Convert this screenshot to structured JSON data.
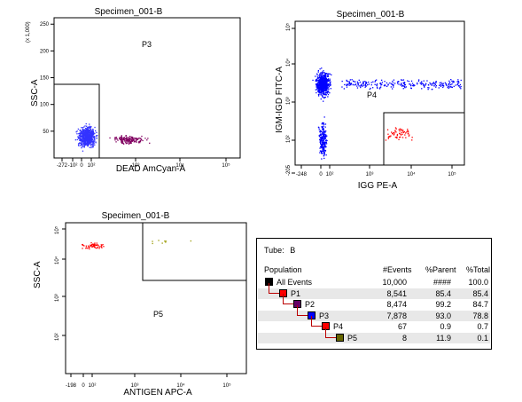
{
  "plots": [
    {
      "id": "plot1",
      "title": "Specimen_001-B",
      "xlabel": "DEAD AmCyan-A",
      "ylabel": "SSC-A",
      "y_multiplier_label": "(x 1,000)",
      "x_ticks": [
        "-272",
        "-10²",
        "0",
        "10²",
        "10³",
        "10⁴",
        "10⁵"
      ],
      "y_ticks": [
        "50",
        "100",
        "150",
        "200",
        "250"
      ],
      "gate_label": "P3"
    },
    {
      "id": "plot2",
      "title": "Specimen_001-B",
      "xlabel": "IGG PE-A",
      "ylabel": "IGM-IGD FITC-A",
      "x_ticks": [
        "-248",
        "0",
        "10²",
        "10³",
        "10⁴",
        "10⁵"
      ],
      "y_ticks": [
        "-205",
        "10²",
        "10³",
        "10⁴",
        "10⁵"
      ],
      "gate_label": "P4"
    },
    {
      "id": "plot3",
      "title": "Specimen_001-B",
      "xlabel": "ANTIGEN APC-A",
      "ylabel": "SSC-A",
      "x_ticks": [
        "-198",
        "0",
        "10²",
        "10³",
        "10⁴",
        "10⁵"
      ],
      "y_ticks": [
        "10²",
        "10³",
        "10⁴",
        "10⁵"
      ],
      "gate_label": "P5"
    }
  ],
  "colors": {
    "all": "#000000",
    "p1": "#ff0000",
    "p2": "#660066",
    "p3": "#0000ff",
    "p4": "#ff0000",
    "p5": "#666600"
  },
  "stats": {
    "tube_label": "Tube:",
    "tube_value": "B",
    "headers": {
      "population": "Population",
      "events": "#Events",
      "parent": "%Parent",
      "total": "%Total"
    },
    "rows": [
      {
        "name": "All Events",
        "events": "10,000",
        "parent": "####",
        "total": "100.0",
        "color": "#000000",
        "level": 0
      },
      {
        "name": "P1",
        "events": "8,541",
        "parent": "85.4",
        "total": "85.4",
        "color": "#ff0000",
        "level": 1
      },
      {
        "name": "P2",
        "events": "8,474",
        "parent": "99.2",
        "total": "84.7",
        "color": "#660066",
        "level": 2
      },
      {
        "name": "P3",
        "events": "7,878",
        "parent": "93.0",
        "total": "78.8",
        "color": "#0000ff",
        "level": 3
      },
      {
        "name": "P4",
        "events": "67",
        "parent": "0.9",
        "total": "0.7",
        "color": "#ff0000",
        "level": 4
      },
      {
        "name": "P5",
        "events": "8",
        "parent": "11.9",
        "total": "0.1",
        "color": "#666600",
        "level": 5
      }
    ]
  },
  "chart_data": [
    {
      "type": "scatter",
      "title": "Specimen_001-B",
      "xlabel": "DEAD AmCyan-A",
      "ylabel": "SSC-A (x 1,000)",
      "x_scale": "biexponential",
      "xlim": [
        -272,
        262144
      ],
      "ylim": [
        0,
        262
      ],
      "gates": [
        {
          "name": "P3",
          "x": [
            -272,
            150
          ],
          "y": [
            0,
            130
          ]
        }
      ],
      "series": [
        {
          "name": "P3",
          "color": "#3333ff",
          "clusters": [
            {
              "x": 10,
              "y": 40
            }
          ]
        },
        {
          "name": "P2",
          "color": "#800060",
          "clusters": [
            {
              "x": 600,
              "y": 35
            }
          ]
        }
      ]
    },
    {
      "type": "scatter",
      "title": "Specimen_001-B",
      "xlabel": "IGG PE-A",
      "ylabel": "IGM-IGD FITC-A",
      "x_scale": "biexponential",
      "y_scale": "biexponential",
      "xlim": [
        -248,
        262144
      ],
      "ylim": [
        -205,
        262144
      ],
      "gates": [
        {
          "name": "P4",
          "x": [
            400,
            262144
          ],
          "y": [
            -205,
            700
          ]
        }
      ],
      "series": [
        {
          "name": "P3",
          "color": "#0000ff",
          "clusters": [
            {
              "x": 30,
              "y": 3000
            },
            {
              "x": 30,
              "y": 100
            }
          ]
        },
        {
          "name": "P4",
          "color": "#ff0000",
          "clusters": [
            {
              "x": 5000,
              "y": 200
            }
          ]
        }
      ]
    },
    {
      "type": "scatter",
      "title": "Specimen_001-B",
      "xlabel": "ANTIGEN APC-A",
      "ylabel": "SSC-A",
      "x_scale": "biexponential",
      "y_scale": "log",
      "xlim": [
        -198,
        262144
      ],
      "ylim": [
        50,
        262144
      ],
      "gates": [
        {
          "name": "P5",
          "x": [
            600,
            262144
          ],
          "y": [
            16000,
            262144
          ]
        }
      ],
      "series": [
        {
          "name": "P4",
          "color": "#ff0000",
          "clusters": [
            {
              "x": 30,
              "y": 60000
            }
          ]
        },
        {
          "name": "P5",
          "color": "#999900",
          "clusters": [
            {
              "x": 3000,
              "y": 65000
            }
          ]
        }
      ]
    }
  ]
}
